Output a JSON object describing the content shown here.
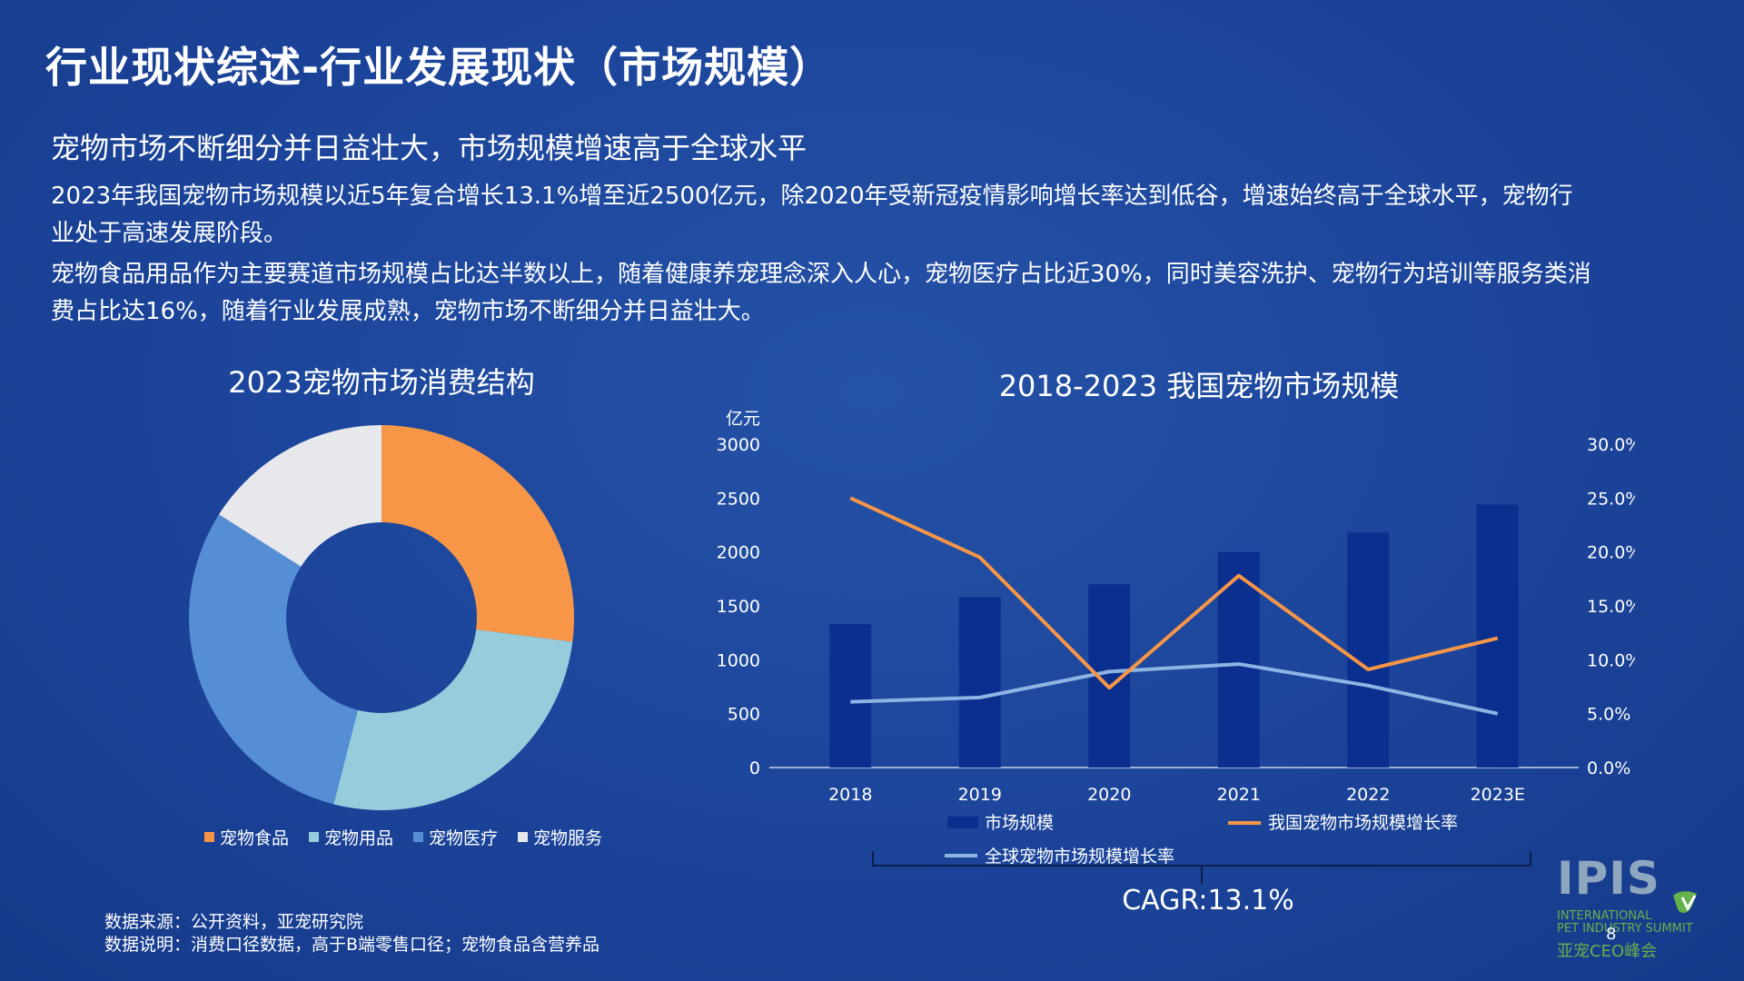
{
  "title": "行业现状综述-行业发展现状（市场规模）",
  "headline": "宠物市场不断细分并日益壮大，市场规模增速高于全球水平",
  "paragraphs": [
    "2023年我国宠物市场规模以近5年复合增长13.1%增至近2500亿元，除2020年受新冠疫情影响增长率达到低谷，增速始终高于全球水平，宠物行业处于高速发展阶段。",
    "宠物食品用品作为主要赛道市场规模占比达半数以上，随着健康养宠理念深入人心，宠物医疗占比近30%，同时美容洗护、宠物行为培训等服务类消费占比达16%，随着行业发展成熟，宠物市场不断细分并日益壮大。"
  ],
  "footnotes": {
    "source": "数据来源：公开资料，亚宠研究院",
    "note": "数据说明：消费口径数据，高于B端零售口径；宠物食品含营养品"
  },
  "logo": {
    "main": "IPIS",
    "sub1": "INTERNATIONAL",
    "sub2": "PET INDUSTRY SUMMIT",
    "cn": "亚宠CEO峰会"
  },
  "page_number": "8",
  "colors": {
    "background": "#1b449a",
    "food": "#f79646",
    "supplies": "#95cddc",
    "medical": "#558ed5",
    "service": "#e6e8ec",
    "bar": "#0b2f8f",
    "domestic_line": "#f79646",
    "global_line": "#8eb4e3"
  },
  "chart_data": [
    {
      "type": "pie",
      "title": "2023宠物市场消费结构",
      "labels": [
        "宠物食品",
        "宠物用品",
        "宠物医疗",
        "宠物服务"
      ],
      "values": [
        27,
        27,
        30,
        16
      ],
      "donut": true
    },
    {
      "type": "bar",
      "title": "2018-2023 我国宠物市场规模",
      "categories": [
        "2018",
        "2019",
        "2020",
        "2021",
        "2022",
        "2023E"
      ],
      "series": [
        {
          "name": "市场规模",
          "type": "bar",
          "axis": "left",
          "values": [
            1330,
            1580,
            1700,
            2000,
            2180,
            2440
          ]
        },
        {
          "name": "我国宠物市场规模增长率",
          "type": "line",
          "axis": "right",
          "values": [
            25.0,
            19.5,
            7.4,
            17.8,
            9.1,
            12.0
          ]
        },
        {
          "name": "全球宠物市场规模增长率",
          "type": "line",
          "axis": "right",
          "values": [
            6.1,
            6.5,
            8.9,
            9.6,
            7.6,
            5.0
          ]
        }
      ],
      "ylabel": "亿元",
      "ylim": [
        0,
        3000
      ],
      "yticks": [
        "0",
        "500",
        "1000",
        "1500",
        "2000",
        "2500",
        "3000"
      ],
      "y2lim": [
        0,
        30
      ],
      "y2ticks": [
        "0.0%",
        "5.0%",
        "10.0%",
        "15.0%",
        "20.0%",
        "25.0%",
        "30.0%"
      ],
      "legend_position": "bottom",
      "annotation": "CAGR:13.1%"
    }
  ]
}
